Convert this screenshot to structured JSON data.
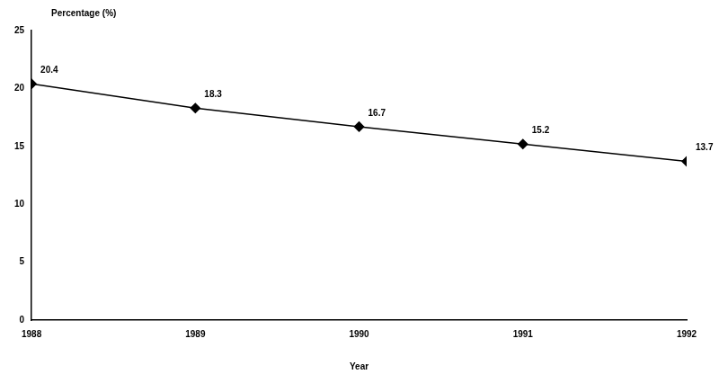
{
  "chart_data": {
    "type": "line",
    "x_label": "Year",
    "y_label": "Percentage (%)",
    "categories": [
      "1988",
      "1989",
      "1990",
      "1991",
      "1992"
    ],
    "values": [
      20.4,
      18.3,
      16.7,
      15.2,
      13.7
    ],
    "color": "#000000",
    "marker": "diamond",
    "ylim": [
      0,
      25
    ],
    "yticks": [
      0,
      5,
      10,
      15,
      20,
      25
    ],
    "grid": false,
    "data_labels": true
  }
}
